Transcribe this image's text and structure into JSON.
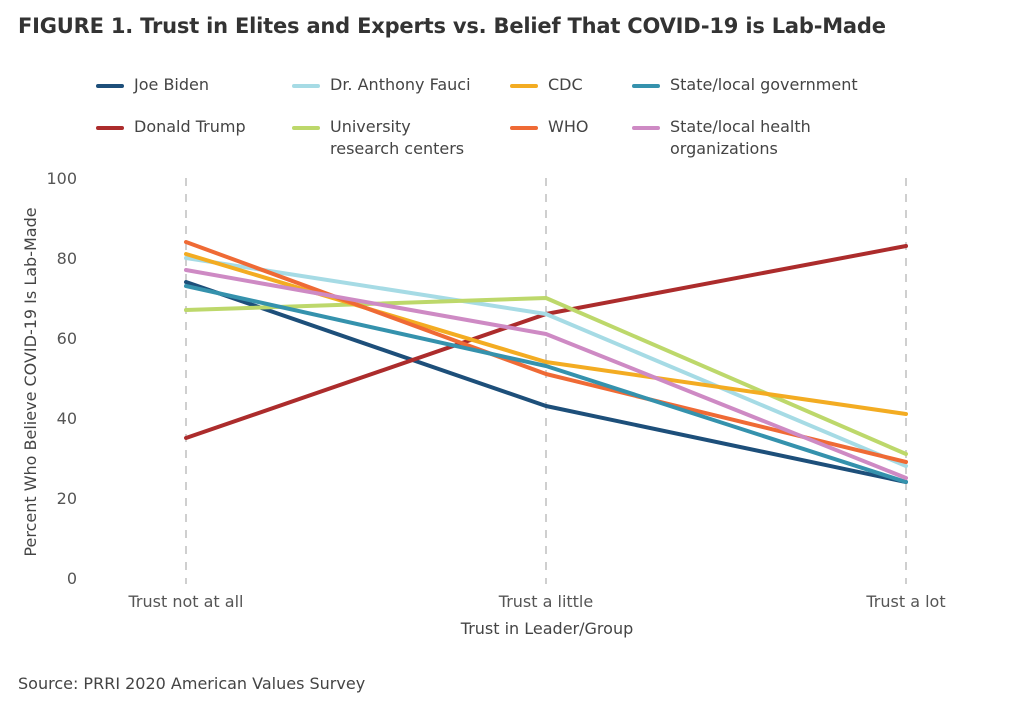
{
  "chart_data": {
    "type": "line",
    "title": "FIGURE 1. Trust in Elites and Experts vs. Belief That COVID-19 is Lab-Made",
    "xlabel": "Trust in Leader/Group",
    "ylabel": "Percent Who Believe COVID-19 Is Lab-Made",
    "categories": [
      "Trust not at all",
      "Trust a little",
      "Trust a lot"
    ],
    "ylim": [
      0,
      100
    ],
    "yticks": [
      0,
      20,
      40,
      60,
      80,
      100
    ],
    "grid": "vertical-dashed",
    "legend_placement": "top",
    "series": [
      {
        "name": "Joe Biden",
        "color": "#1d4f7a",
        "values": [
          74,
          43,
          24
        ]
      },
      {
        "name": "Donald Trump",
        "color": "#ac2c2c",
        "values": [
          35,
          66,
          83
        ]
      },
      {
        "name": "Dr. Anthony Fauci",
        "color": "#a6dbe5",
        "values": [
          80,
          66,
          28
        ]
      },
      {
        "name": "University\nresearch centers",
        "color": "#bdd86b",
        "values": [
          67,
          70,
          31
        ]
      },
      {
        "name": "CDC",
        "color": "#f3ac22",
        "values": [
          81,
          54,
          41
        ]
      },
      {
        "name": "WHO",
        "color": "#ef6a35",
        "values": [
          84,
          51,
          29
        ]
      },
      {
        "name": "State/local government",
        "color": "#3592ad",
        "values": [
          73,
          53,
          24
        ]
      },
      {
        "name": "State/local  health\norganizations",
        "color": "#ce8ac4",
        "values": [
          77,
          61,
          25
        ]
      }
    ],
    "source": "Source: PRRI 2020 American Values Survey"
  }
}
